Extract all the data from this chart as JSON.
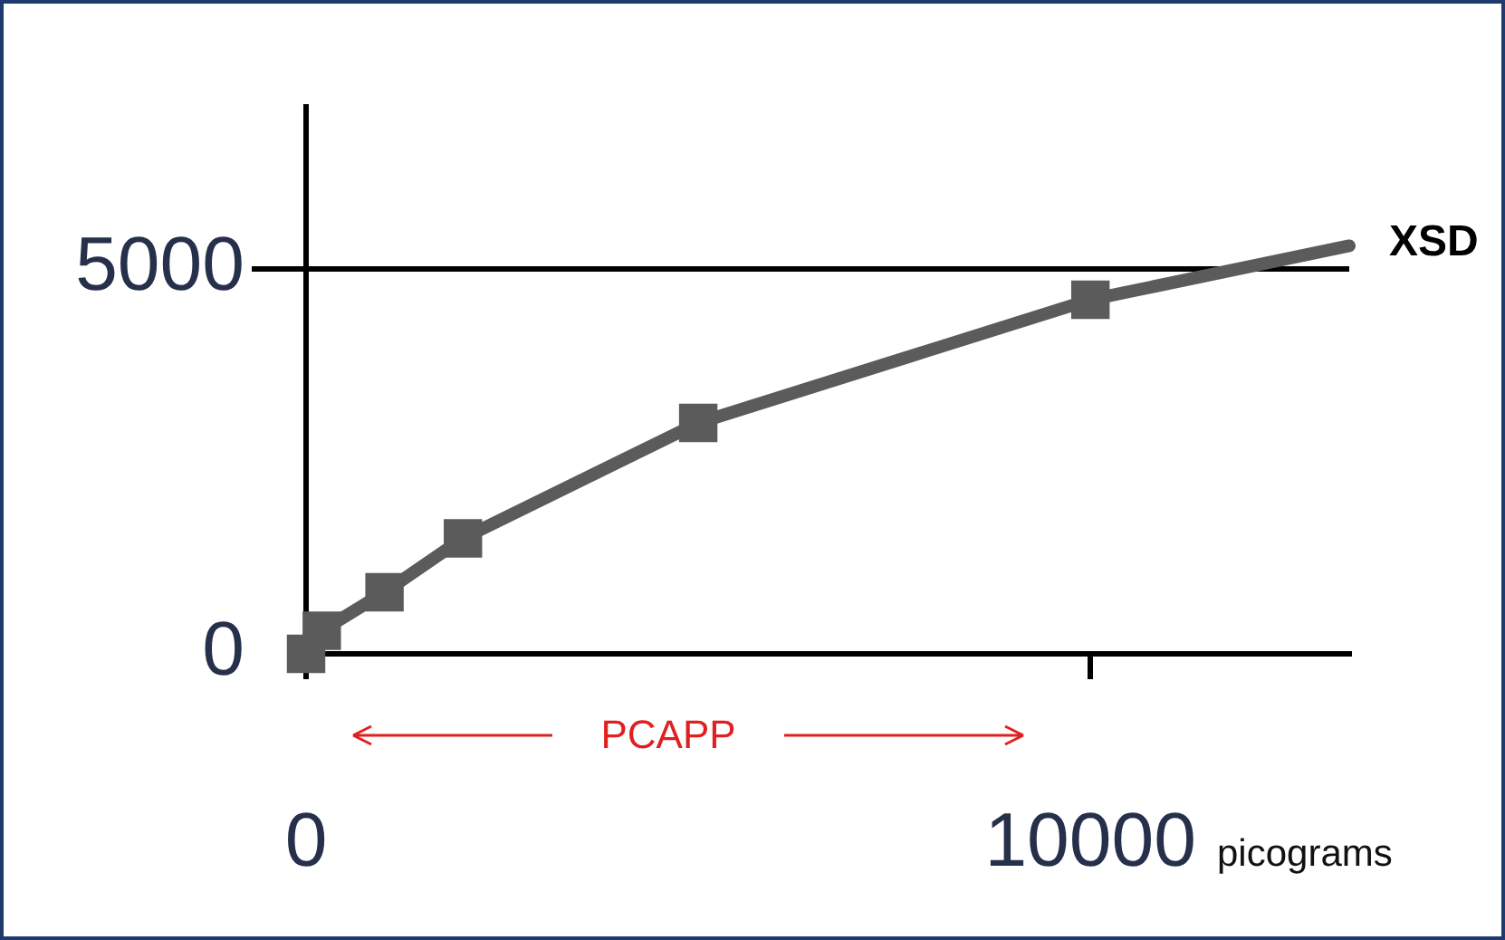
{
  "chart_data": {
    "type": "line",
    "xlabel": "picograms",
    "marker": "square",
    "grid": false,
    "legend": false,
    "xlim": [
      0,
      13300
    ],
    "ylim": [
      0,
      7100
    ],
    "xticks": [
      0,
      10000
    ],
    "yticks": [
      0,
      5000
    ],
    "series": [
      {
        "color": "#5b5b5b",
        "x": [
          0,
          200,
          1000,
          2000,
          5000,
          10000
        ],
        "values": [
          0,
          300,
          800,
          1500,
          3000,
          4600
        ]
      },
      {
        "color": "#5b5b5b",
        "marker": "none",
        "x": [
          10000,
          13300
        ],
        "values": [
          4600,
          5300
        ]
      }
    ],
    "ref_lines": [
      {
        "axis": "y",
        "value": 5000,
        "label": "XSD",
        "color": "#000000"
      }
    ],
    "annotations": [
      "PCAPP"
    ]
  }
}
